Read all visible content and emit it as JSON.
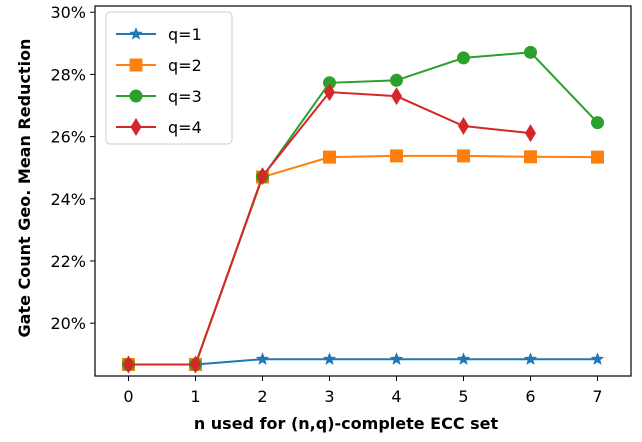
{
  "chart_data": {
    "type": "line",
    "title": "",
    "xlabel": "n used for (n,q)-complete ECC set",
    "ylabel": "Gate Count Geo. Mean Reduction",
    "xlim": [
      -0.5,
      7.5
    ],
    "ylim": [
      18.3,
      30.2
    ],
    "x_ticks": [
      0,
      1,
      2,
      3,
      4,
      5,
      6,
      7
    ],
    "x_tick_labels": [
      "0",
      "1",
      "2",
      "3",
      "4",
      "5",
      "6",
      "7"
    ],
    "y_ticks": [
      20,
      22,
      24,
      26,
      28,
      30
    ],
    "y_tick_labels": [
      "20%",
      "22%",
      "24%",
      "26%",
      "28%",
      "30%"
    ],
    "grid": false,
    "legend_position": "upper-left",
    "series": [
      {
        "name": "q=1",
        "color": "#1f77b4",
        "marker": "star",
        "x": [
          0,
          1,
          2,
          3,
          4,
          5,
          6,
          7
        ],
        "values": [
          18.67,
          18.67,
          18.84,
          18.84,
          18.84,
          18.84,
          18.84,
          18.84
        ]
      },
      {
        "name": "q=2",
        "color": "#ff7f0e",
        "marker": "square",
        "x": [
          0,
          1,
          2,
          3,
          4,
          5,
          6,
          7
        ],
        "values": [
          18.67,
          18.67,
          24.7,
          25.34,
          25.38,
          25.38,
          25.35,
          25.34
        ]
      },
      {
        "name": "q=3",
        "color": "#2ca02c",
        "marker": "circle",
        "x": [
          0,
          1,
          2,
          3,
          4,
          5,
          6,
          7
        ],
        "values": [
          18.67,
          18.67,
          24.7,
          27.73,
          27.81,
          28.53,
          28.71,
          26.45
        ]
      },
      {
        "name": "q=4",
        "color": "#d62728",
        "marker": "diamond",
        "x": [
          0,
          1,
          2,
          3,
          4,
          5,
          6
        ],
        "values": [
          18.67,
          18.67,
          24.73,
          27.43,
          27.3,
          26.34,
          26.11
        ]
      }
    ]
  }
}
